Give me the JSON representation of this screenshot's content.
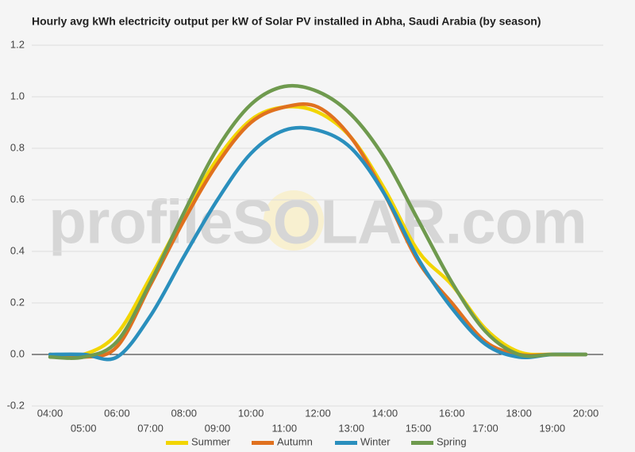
{
  "chart_data": {
    "type": "line",
    "title": "Hourly avg kWh electricity output per kW of Solar PV installed in Abha, Saudi Arabia (by season)",
    "watermark": "profileSOLAR.com",
    "categories": [
      "04:00",
      "05:00",
      "06:00",
      "07:00",
      "08:00",
      "09:00",
      "10:00",
      "11:00",
      "12:00",
      "13:00",
      "14:00",
      "15:00",
      "16:00",
      "17:00",
      "18:00",
      "19:00",
      "20:00"
    ],
    "series": [
      {
        "name": "Summer",
        "color": "#f2d500",
        "values": [
          0,
          0,
          0.08,
          0.3,
          0.54,
          0.76,
          0.91,
          0.96,
          0.94,
          0.84,
          0.64,
          0.4,
          0.27,
          0.1,
          0.01,
          0,
          0
        ]
      },
      {
        "name": "Autumn",
        "color": "#e0711f",
        "values": [
          0,
          -0.01,
          0.03,
          0.27,
          0.52,
          0.74,
          0.9,
          0.96,
          0.96,
          0.84,
          0.62,
          0.36,
          0.2,
          0.05,
          0,
          0,
          0
        ]
      },
      {
        "name": "Winter",
        "color": "#2a8fbd",
        "values": [
          0,
          0,
          -0.01,
          0.15,
          0.38,
          0.6,
          0.78,
          0.87,
          0.87,
          0.8,
          0.62,
          0.37,
          0.18,
          0.04,
          -0.01,
          0,
          0
        ]
      },
      {
        "name": "Spring",
        "color": "#6f9a4e",
        "values": [
          -0.01,
          -0.01,
          0.05,
          0.28,
          0.55,
          0.8,
          0.97,
          1.04,
          1.02,
          0.93,
          0.76,
          0.52,
          0.28,
          0.09,
          0,
          0,
          0
        ]
      }
    ],
    "ylim": [
      -0.2,
      1.2
    ],
    "yticks": [
      -0.2,
      {
        "value": 0,
        "label": "0.0"
      },
      0.2,
      0.4,
      0.6,
      0.8,
      {
        "value": 1,
        "label": "1.0"
      },
      1.2
    ],
    "grid": true,
    "legend": "bottom"
  }
}
